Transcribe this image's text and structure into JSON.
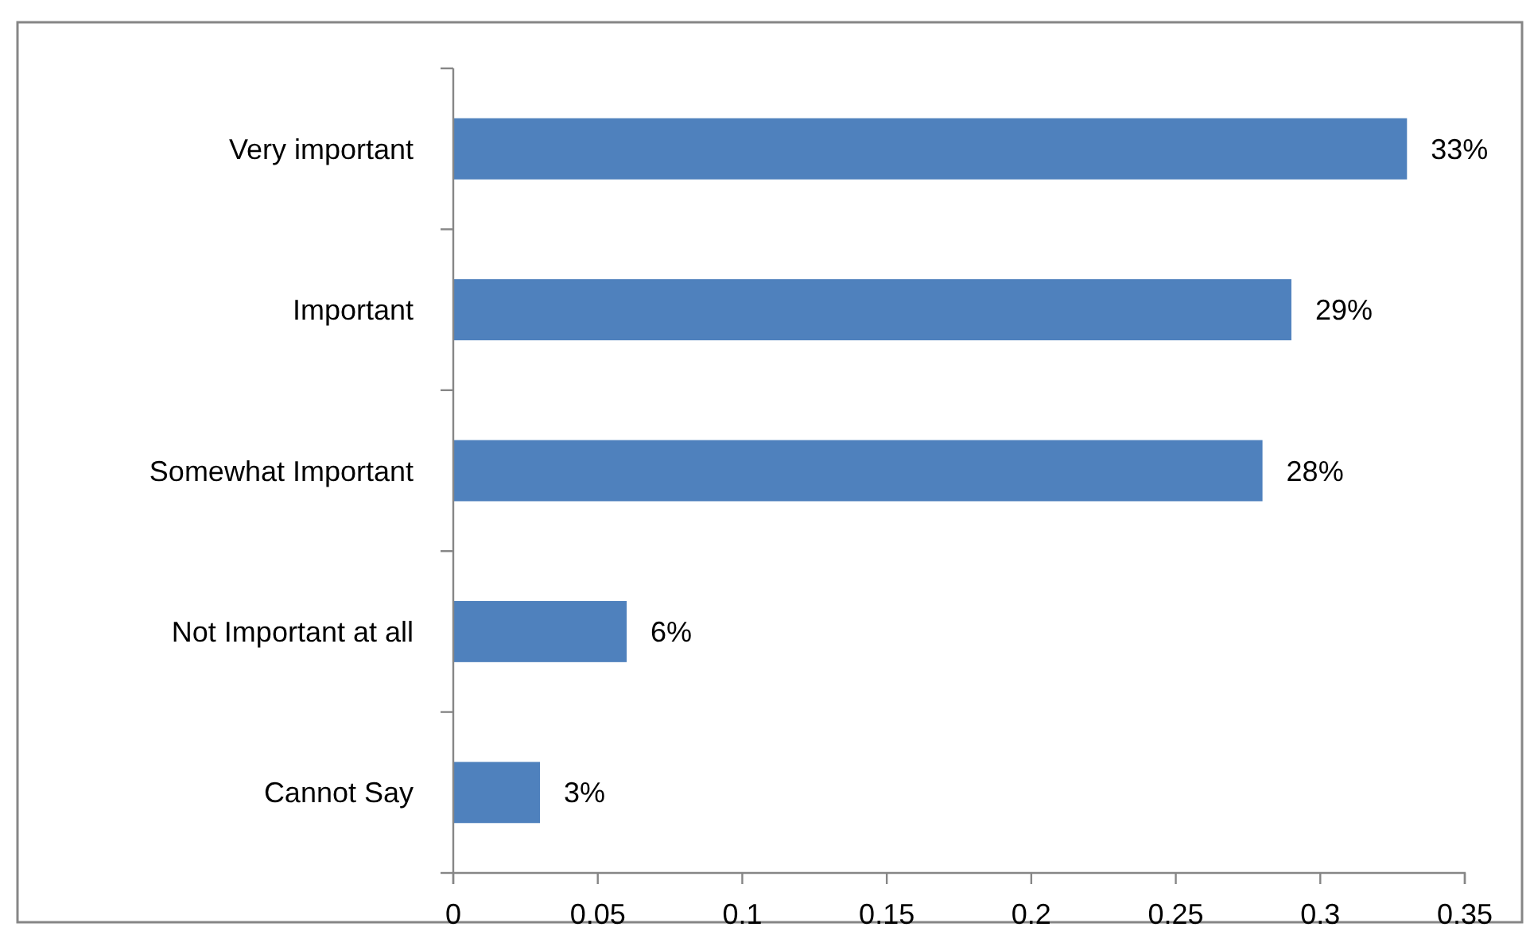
{
  "chart_data": {
    "type": "bar",
    "orientation": "horizontal",
    "categories": [
      "Very important",
      "Important",
      "Somewhat Important",
      "Not Important at all",
      "Cannot Say"
    ],
    "values": [
      0.33,
      0.29,
      0.28,
      0.06,
      0.03
    ],
    "color": "#4f81bd",
    "value_labels": [
      "33%",
      "29%",
      "28%",
      "6%",
      "3%"
    ],
    "xlim": [
      0,
      0.35
    ],
    "xticks": [
      0,
      0.05,
      0.1,
      0.15,
      0.2,
      0.25,
      0.3,
      0.35
    ]
  }
}
